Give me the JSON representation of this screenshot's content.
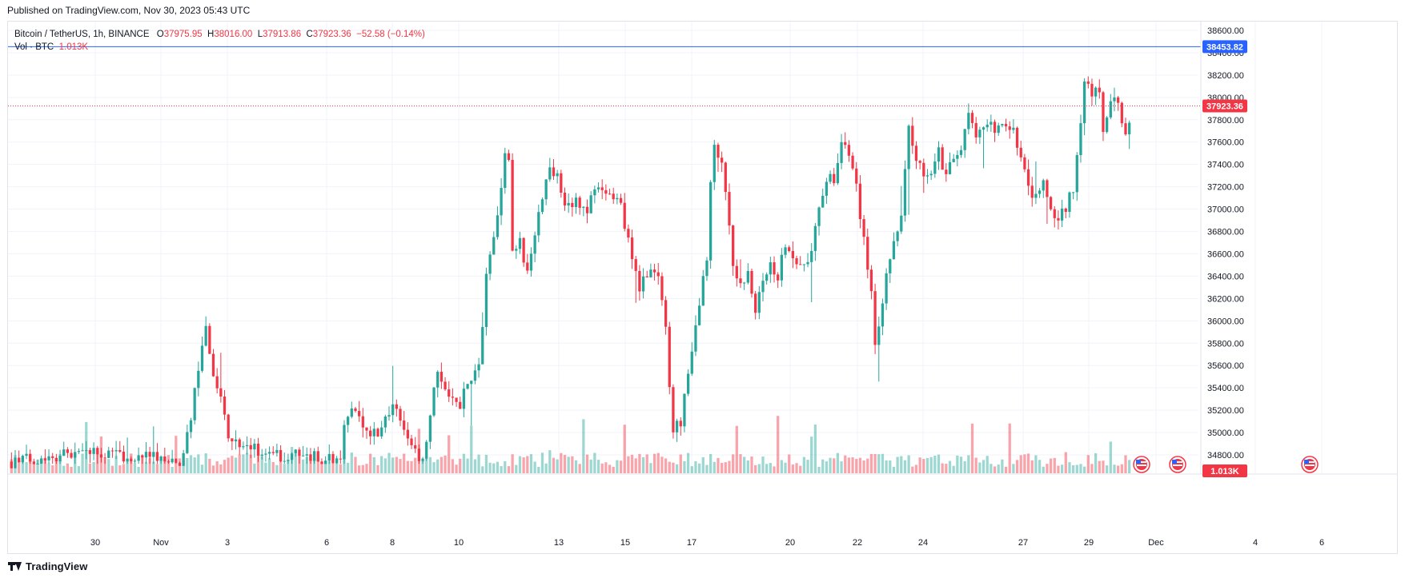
{
  "header": {
    "published": "Published on TradingView.com, Nov 30, 2023 05:43 UTC"
  },
  "legend": {
    "symbol": "Bitcoin / TetherUS, 1h, BINANCE",
    "o_label": "O",
    "o_value": "37975.95",
    "h_label": "H",
    "h_value": "38016.00",
    "l_label": "L",
    "l_value": "37913.86",
    "c_label": "C",
    "c_value": "37923.36",
    "change": "−52.58 (−0.14%)",
    "vol_label": "Vol · BTC",
    "vol_value": "1.013K"
  },
  "footer": {
    "brand": "TradingView"
  },
  "colors": {
    "up": "#26a69a",
    "down": "#f23645",
    "blue_line": "#2962ff",
    "price_line": "#f23645"
  },
  "chart_data": {
    "type": "candlestick",
    "symbol": "Bitcoin / TetherUS",
    "interval": "1h",
    "exchange": "BINANCE",
    "ylim": [
      34700,
      38700
    ],
    "y_ticks": [
      "34800.00",
      "35000.00",
      "35200.00",
      "35400.00",
      "35600.00",
      "35800.00",
      "36000.00",
      "36200.00",
      "36400.00",
      "36600.00",
      "36800.00",
      "37000.00",
      "37200.00",
      "37400.00",
      "37600.00",
      "37800.00",
      "38000.00",
      "38200.00",
      "38400.00",
      "38600.00"
    ],
    "x_ticks": [
      "30",
      "Nov",
      "3",
      "6",
      "8",
      "10",
      "13",
      "15",
      "17",
      "20",
      "22",
      "24",
      "27",
      "29",
      "Dec",
      "4",
      "6"
    ],
    "current_price": 37923.36,
    "current_price_label": "37923.36",
    "horizontal_line": 38453.82,
    "horizontal_line_label": "38453.82",
    "volume_last_label": "1.013K",
    "event_markers": 3,
    "path": [
      [
        0,
        34740
      ],
      [
        8,
        34780
      ],
      [
        20,
        34820
      ],
      [
        30,
        34800
      ],
      [
        38,
        34780
      ],
      [
        40,
        34750
      ],
      [
        45,
        34740
      ],
      [
        48,
        35100
      ],
      [
        50,
        35600
      ],
      [
        52,
        35900
      ],
      [
        53,
        35650
      ],
      [
        55,
        35400
      ],
      [
        58,
        35000
      ],
      [
        62,
        34900
      ],
      [
        70,
        34800
      ],
      [
        80,
        34780
      ],
      [
        85,
        34760
      ],
      [
        88,
        34820
      ],
      [
        90,
        35200
      ],
      [
        93,
        35150
      ],
      [
        96,
        34950
      ],
      [
        100,
        35100
      ],
      [
        103,
        35250
      ],
      [
        106,
        35000
      ],
      [
        108,
        34820
      ],
      [
        110,
        34760
      ],
      [
        112,
        35100
      ],
      [
        114,
        35600
      ],
      [
        117,
        35300
      ],
      [
        120,
        35250
      ],
      [
        122,
        35450
      ],
      [
        125,
        35600
      ],
      [
        127,
        36400
      ],
      [
        129,
        36800
      ],
      [
        131,
        37200
      ],
      [
        132,
        37500
      ],
      [
        133,
        37400
      ],
      [
        133.5,
        36200
      ],
      [
        134,
        36600
      ],
      [
        136,
        36700
      ],
      [
        138,
        36400
      ],
      [
        140,
        36800
      ],
      [
        142,
        37100
      ],
      [
        144,
        37400
      ],
      [
        146,
        37300
      ],
      [
        148,
        37000
      ],
      [
        151,
        37100
      ],
      [
        154,
        37000
      ],
      [
        157,
        37200
      ],
      [
        160,
        37150
      ],
      [
        163,
        37000
      ],
      [
        165,
        36700
      ],
      [
        168,
        36300
      ],
      [
        171,
        36500
      ],
      [
        173,
        36400
      ],
      [
        175,
        35900
      ],
      [
        177,
        35000
      ],
      [
        179,
        35100
      ],
      [
        180,
        35400
      ],
      [
        182,
        35700
      ],
      [
        184,
        36100
      ],
      [
        186,
        36600
      ],
      [
        187,
        37300
      ],
      [
        188,
        37600
      ],
      [
        190,
        37400
      ],
      [
        191,
        37100
      ],
      [
        193,
        36500
      ],
      [
        195,
        36300
      ],
      [
        197,
        36500
      ],
      [
        199,
        36100
      ],
      [
        201,
        36400
      ],
      [
        203,
        36500
      ],
      [
        205,
        36400
      ],
      [
        207,
        36700
      ],
      [
        209,
        36600
      ],
      [
        211,
        36500
      ],
      [
        214,
        36600
      ],
      [
        216,
        37000
      ],
      [
        218,
        37300
      ],
      [
        220,
        37250
      ],
      [
        222,
        37600
      ],
      [
        224,
        37500
      ],
      [
        226,
        37200
      ],
      [
        228,
        36700
      ],
      [
        230,
        36300
      ],
      [
        231,
        35800
      ],
      [
        232,
        36000
      ],
      [
        234,
        36400
      ],
      [
        236,
        36700
      ],
      [
        238,
        36900
      ],
      [
        240,
        37700
      ],
      [
        242,
        37400
      ],
      [
        245,
        37300
      ],
      [
        248,
        37500
      ],
      [
        250,
        37300
      ],
      [
        252,
        37450
      ],
      [
        254,
        37550
      ],
      [
        256,
        37900
      ],
      [
        258,
        37650
      ],
      [
        260,
        37700
      ],
      [
        262,
        37750
      ],
      [
        264,
        37700
      ],
      [
        266,
        37750
      ],
      [
        268,
        37700
      ],
      [
        270,
        37500
      ],
      [
        272,
        37200
      ],
      [
        274,
        37100
      ],
      [
        276,
        37300
      ],
      [
        278,
        37000
      ],
      [
        280,
        36900
      ],
      [
        282,
        37000
      ],
      [
        284,
        37200
      ],
      [
        286,
        37800
      ],
      [
        287,
        38200
      ],
      [
        289,
        38000
      ],
      [
        291,
        38100
      ],
      [
        292,
        37700
      ],
      [
        294,
        38000
      ],
      [
        296,
        37900
      ],
      [
        298,
        37700
      ],
      [
        300,
        37900
      ]
    ]
  }
}
